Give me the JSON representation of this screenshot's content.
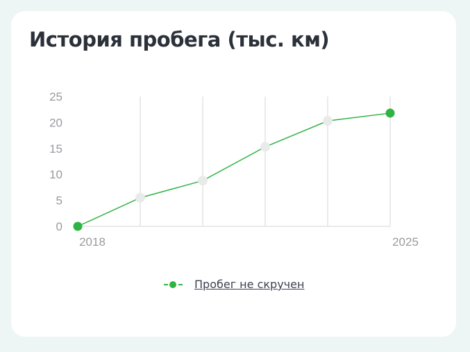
{
  "title": "История пробега (тыс. км)",
  "legend_label": "Пробег не скручен",
  "colors": {
    "line": "#2fb344",
    "point_key": "#2fb344",
    "point_mid": "#e9eaea",
    "grid": "#e4e4e4",
    "tick": "#9a9aa0"
  },
  "chart_data": {
    "type": "line",
    "title": "История пробега (тыс. км)",
    "y_ticks": [
      0,
      5,
      10,
      15,
      20,
      25
    ],
    "x_tick_labels": [
      "2018",
      "",
      "",
      "",
      "",
      "2025"
    ],
    "ylim": [
      0,
      25
    ],
    "grid": "vertical",
    "legend_position": "bottom",
    "series": [
      {
        "name": "Пробег не скручен",
        "values": [
          0,
          5.5,
          8.8,
          15.3,
          20.3,
          21.8
        ],
        "highlighted": [
          true,
          false,
          false,
          false,
          false,
          true
        ]
      }
    ]
  }
}
